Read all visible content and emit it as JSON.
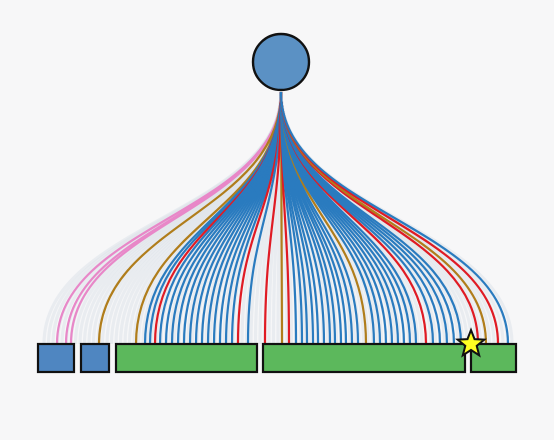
{
  "colors": {
    "background": "#f7f7f8",
    "root_fill": "#5b91c4",
    "blue_box": "#4f86c1",
    "green_box": "#5cb85c",
    "outline": "#111111",
    "star": "#ffff22",
    "link_blue": "#2a7bbf",
    "link_red": "#e01b24",
    "link_gold": "#b07d1b",
    "link_pink": "#e887c8",
    "link_faint": "#dfe3ea"
  },
  "tree": {
    "root": {
      "shape": "circle"
    },
    "children": [
      {
        "shape": "rect",
        "color": "blue_box"
      },
      {
        "shape": "rect",
        "color": "blue_box"
      },
      {
        "shape": "rect",
        "color": "green_box"
      },
      {
        "shape": "rect",
        "color": "green_box"
      },
      {
        "shape": "rect",
        "color": "green_box",
        "marker": "star-icon"
      }
    ]
  },
  "link_legend_colors": [
    "link_pink",
    "link_gold",
    "link_red",
    "link_blue"
  ]
}
